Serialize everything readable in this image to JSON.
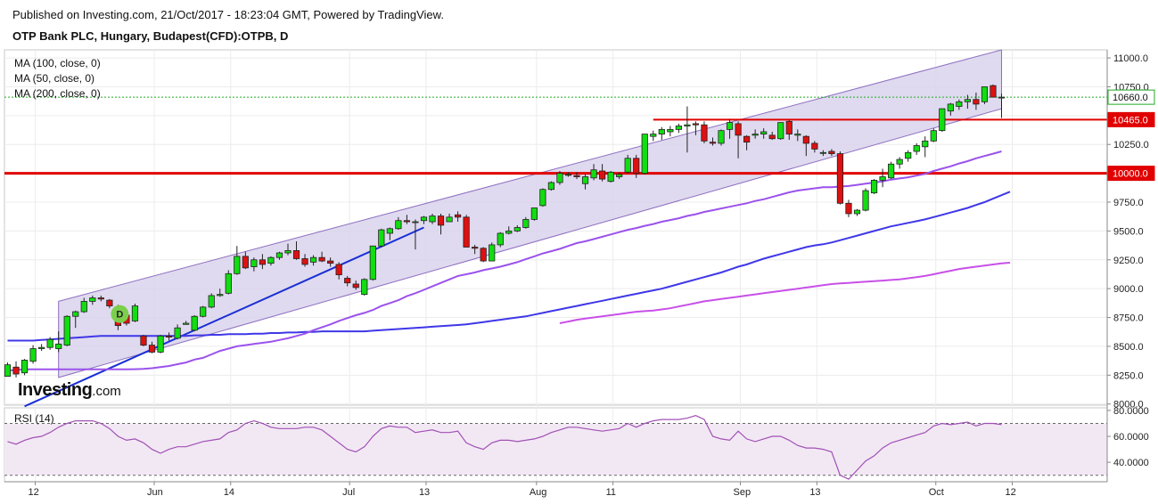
{
  "header": {
    "published": "Published on Investing.com, 21/Oct/2017 - 18:23:04 GMT, Powered by TradingView.",
    "title": "OTP Bank PLC, Hungary, Budapest(CFD):OTPB, D"
  },
  "indicators": {
    "ma100": "MA (100, close, 0)",
    "ma50": "MA (50, close, 0)",
    "ma200": "MA (200, close, 0)",
    "rsi": "RSI (14)"
  },
  "logo": {
    "main": "Investing",
    "suffix": ".com"
  },
  "colors": {
    "up": "#11dd11",
    "down": "#dd1111",
    "channel_fill": "#d9d4ec",
    "channel_stroke": "#8e6fc0",
    "ma100": "#3f37e8",
    "ma50": "#9b52ec",
    "ma200": "#c850e8",
    "trendline": "#1a2fd6",
    "hline": "#e00000",
    "rsi": "#a150b5",
    "rsi_band": "#f2e8f4",
    "badge": "#7ccf4c"
  },
  "chart_data": [
    {
      "type": "candlestick",
      "title": "OTP Bank PLC, Hungary, Budapest(CFD):OTPB, D",
      "ylim": [
        7990,
        11070
      ],
      "yticks": [
        "11000.0",
        "10750.0",
        "10500.0",
        "10250.0",
        "10000.0",
        "9750.0",
        "9500.0",
        "9250.0",
        "9000.0",
        "8750.0",
        "8500.0",
        "8250.0",
        "8000.0"
      ],
      "xticks": [
        "12",
        "Jun",
        "14",
        "Jul",
        "13",
        "Aug",
        "11",
        "Sep",
        "13",
        "Oct",
        "12"
      ],
      "price_labels": [
        {
          "value": 10660,
          "text": "10660.0",
          "style": "last"
        },
        {
          "value": 10465,
          "text": "10465.0",
          "style": "level"
        },
        {
          "value": 10000,
          "text": "10000.0",
          "style": "level"
        }
      ],
      "horizontal_levels": [
        10465,
        10000
      ],
      "last_price": 10660,
      "badge": "D",
      "candles": [
        [
          8240,
          8360,
          8240,
          8340
        ],
        [
          8320,
          8370,
          8230,
          8260
        ],
        [
          8270,
          8390,
          8250,
          8380
        ],
        [
          8370,
          8510,
          8350,
          8480
        ],
        [
          8480,
          8520,
          8460,
          8490
        ],
        [
          8490,
          8580,
          8470,
          8560
        ],
        [
          8480,
          8630,
          8450,
          8520
        ],
        [
          8510,
          8770,
          8500,
          8760
        ],
        [
          8760,
          8810,
          8660,
          8800
        ],
        [
          8800,
          8920,
          8790,
          8890
        ],
        [
          8890,
          8940,
          8860,
          8920
        ],
        [
          8920,
          8940,
          8890,
          8910
        ],
        [
          8900,
          8910,
          8830,
          8850
        ],
        [
          8840,
          8860,
          8640,
          8680
        ],
        [
          8770,
          8780,
          8680,
          8700
        ],
        [
          8720,
          8870,
          8710,
          8850
        ],
        [
          8590,
          8600,
          8500,
          8510
        ],
        [
          8510,
          8540,
          8440,
          8450
        ],
        [
          8450,
          8600,
          8440,
          8590
        ],
        [
          8590,
          8620,
          8550,
          8580
        ],
        [
          8570,
          8690,
          8560,
          8660
        ],
        [
          8690,
          8720,
          8690,
          8700
        ],
        [
          8640,
          8770,
          8630,
          8760
        ],
        [
          8760,
          8850,
          8750,
          8840
        ],
        [
          8840,
          8960,
          8830,
          8940
        ],
        [
          8940,
          9000,
          8930,
          8950
        ],
        [
          8960,
          9160,
          8950,
          9130
        ],
        [
          9130,
          9370,
          9120,
          9280
        ],
        [
          9280,
          9320,
          9170,
          9180
        ],
        [
          9190,
          9270,
          9150,
          9250
        ],
        [
          9250,
          9300,
          9170,
          9210
        ],
        [
          9220,
          9280,
          9200,
          9270
        ],
        [
          9270,
          9320,
          9250,
          9310
        ],
        [
          9310,
          9390,
          9290,
          9330
        ],
        [
          9330,
          9410,
          9250,
          9260
        ],
        [
          9260,
          9300,
          9190,
          9210
        ],
        [
          9230,
          9290,
          9200,
          9270
        ],
        [
          9270,
          9320,
          9230,
          9240
        ],
        [
          9240,
          9270,
          9190,
          9220
        ],
        [
          9210,
          9230,
          9080,
          9120
        ],
        [
          9090,
          9110,
          9020,
          9050
        ],
        [
          9040,
          9070,
          8990,
          9010
        ],
        [
          8950,
          9090,
          8940,
          9080
        ],
        [
          9080,
          9370,
          9070,
          9370
        ],
        [
          9370,
          9520,
          9360,
          9510
        ],
        [
          9480,
          9530,
          9420,
          9520
        ],
        [
          9520,
          9620,
          9510,
          9590
        ],
        [
          9590,
          9640,
          9560,
          9580
        ],
        [
          9580,
          9600,
          9340,
          9580
        ],
        [
          9590,
          9630,
          9560,
          9620
        ],
        [
          9580,
          9650,
          9560,
          9630
        ],
        [
          9630,
          9650,
          9470,
          9550
        ],
        [
          9580,
          9650,
          9580,
          9620
        ],
        [
          9640,
          9670,
          9580,
          9620
        ],
        [
          9620,
          9640,
          9360,
          9360
        ],
        [
          9360,
          9380,
          9300,
          9350
        ],
        [
          9350,
          9360,
          9230,
          9240
        ],
        [
          9240,
          9400,
          9240,
          9380
        ],
        [
          9380,
          9490,
          9360,
          9480
        ],
        [
          9480,
          9540,
          9470,
          9500
        ],
        [
          9500,
          9550,
          9490,
          9530
        ],
        [
          9530,
          9620,
          9520,
          9600
        ],
        [
          9600,
          9700,
          9590,
          9700
        ],
        [
          9720,
          9870,
          9710,
          9860
        ],
        [
          9860,
          9930,
          9850,
          9920
        ],
        [
          9920,
          10020,
          9900,
          10000
        ],
        [
          9990,
          10010,
          9970,
          9990
        ],
        [
          9980,
          10010,
          9950,
          9970
        ],
        [
          9910,
          9990,
          9860,
          9970
        ],
        [
          9960,
          10080,
          9940,
          10030
        ],
        [
          10020,
          10080,
          9930,
          9950
        ],
        [
          9930,
          10020,
          9920,
          10010
        ],
        [
          9970,
          10010,
          9950,
          9990
        ],
        [
          10010,
          10160,
          10000,
          10130
        ],
        [
          10130,
          10160,
          9960,
          10000
        ],
        [
          10000,
          10340,
          9990,
          10340
        ],
        [
          10320,
          10370,
          10280,
          10340
        ],
        [
          10340,
          10400,
          10290,
          10380
        ],
        [
          10360,
          10410,
          10320,
          10380
        ],
        [
          10380,
          10430,
          10350,
          10410
        ],
        [
          10410,
          10580,
          10180,
          10420
        ],
        [
          10430,
          10450,
          10330,
          10420
        ],
        [
          10420,
          10450,
          10260,
          10280
        ],
        [
          10270,
          10310,
          10240,
          10260
        ],
        [
          10260,
          10380,
          10240,
          10370
        ],
        [
          10380,
          10470,
          10300,
          10440
        ],
        [
          10430,
          10450,
          10130,
          10330
        ],
        [
          10320,
          10330,
          10200,
          10270
        ],
        [
          10330,
          10380,
          10300,
          10340
        ],
        [
          10340,
          10390,
          10300,
          10360
        ],
        [
          10330,
          10360,
          10290,
          10300
        ],
        [
          10300,
          10440,
          10290,
          10440
        ],
        [
          10450,
          10460,
          10290,
          10340
        ],
        [
          10330,
          10380,
          10280,
          10340
        ],
        [
          10320,
          10330,
          10150,
          10260
        ],
        [
          10260,
          10280,
          10180,
          10210
        ],
        [
          10180,
          10200,
          10150,
          10180
        ],
        [
          10190,
          10210,
          10150,
          10170
        ],
        [
          10170,
          10190,
          9730,
          9740
        ],
        [
          9740,
          9770,
          9620,
          9650
        ],
        [
          9650,
          9690,
          9630,
          9680
        ],
        [
          9680,
          9870,
          9670,
          9850
        ],
        [
          9830,
          9950,
          9820,
          9940
        ],
        [
          9940,
          10040,
          9880,
          9970
        ],
        [
          9960,
          10100,
          9950,
          10080
        ],
        [
          10080,
          10140,
          10040,
          10120
        ],
        [
          10130,
          10200,
          10100,
          10180
        ],
        [
          10190,
          10260,
          10160,
          10240
        ],
        [
          10230,
          10320,
          10140,
          10280
        ],
        [
          10280,
          10390,
          10270,
          10370
        ],
        [
          10370,
          10560,
          10360,
          10560
        ],
        [
          10540,
          10610,
          10500,
          10600
        ],
        [
          10580,
          10640,
          10550,
          10620
        ],
        [
          10620,
          10680,
          10560,
          10640
        ],
        [
          10640,
          10700,
          10550,
          10600
        ],
        [
          10620,
          10750,
          10600,
          10750
        ],
        [
          10760,
          10770,
          10660,
          10660
        ],
        [
          10660,
          10690,
          10480,
          10660
        ]
      ],
      "ma50": [
        8290,
        8295,
        8300,
        8300,
        8300,
        8300,
        8300,
        8300,
        8300,
        8300,
        8300,
        8300,
        8300,
        8300,
        8300,
        8302,
        8305,
        8310,
        8320,
        8330,
        8345,
        8360,
        8385,
        8400,
        8430,
        8460,
        8480,
        8500,
        8510,
        8520,
        8530,
        8540,
        8555,
        8570,
        8590,
        8610,
        8640,
        8665,
        8690,
        8720,
        8745,
        8770,
        8790,
        8815,
        8850,
        8875,
        8900,
        8935,
        8960,
        8990,
        9020,
        9050,
        9080,
        9110,
        9125,
        9140,
        9160,
        9175,
        9190,
        9210,
        9230,
        9255,
        9280,
        9305,
        9325,
        9345,
        9370,
        9395,
        9410,
        9430,
        9450,
        9470,
        9490,
        9510,
        9525,
        9545,
        9560,
        9580,
        9595,
        9610,
        9630,
        9645,
        9665,
        9680,
        9695,
        9710,
        9725,
        9740,
        9760,
        9775,
        9795,
        9815,
        9835,
        9850,
        9860,
        9870,
        9880,
        9880,
        9885,
        9890,
        9900,
        9910,
        9920,
        9930,
        9945,
        9955,
        9965,
        9980,
        9995,
        10020,
        10040,
        10060,
        10085,
        10105,
        10130,
        10150,
        10170,
        10190
      ],
      "ma100": [
        8550,
        8550,
        8550,
        8550,
        8555,
        8560,
        8565,
        8570,
        8575,
        8580,
        8585,
        8590,
        8590,
        8590,
        8590,
        8590,
        8590,
        8590,
        8590,
        8590,
        8590,
        8590,
        8595,
        8595,
        8600,
        8600,
        8605,
        8605,
        8605,
        8610,
        8610,
        8615,
        8615,
        8620,
        8620,
        8625,
        8625,
        8630,
        8630,
        8630,
        8630,
        8630,
        8630,
        8635,
        8640,
        8645,
        8650,
        8655,
        8660,
        8665,
        8670,
        8675,
        8680,
        8685,
        8690,
        8700,
        8710,
        8720,
        8730,
        8740,
        8750,
        8760,
        8775,
        8790,
        8805,
        8820,
        8835,
        8850,
        8865,
        8880,
        8895,
        8910,
        8925,
        8940,
        8955,
        8970,
        8985,
        9000,
        9020,
        9040,
        9060,
        9080,
        9100,
        9120,
        9140,
        9165,
        9190,
        9210,
        9235,
        9260,
        9280,
        9300,
        9320,
        9340,
        9360,
        9375,
        9385,
        9400,
        9420,
        9440,
        9460,
        9480,
        9500,
        9520,
        9540,
        9555,
        9570,
        9585,
        9600,
        9620,
        9640,
        9660,
        9680,
        9700,
        9725,
        9750,
        9780,
        9810,
        9840
      ],
      "ma200": [
        null,
        null,
        null,
        null,
        null,
        null,
        null,
        null,
        null,
        null,
        null,
        null,
        null,
        null,
        null,
        null,
        null,
        null,
        null,
        null,
        null,
        null,
        null,
        null,
        null,
        null,
        null,
        null,
        null,
        null,
        null,
        null,
        null,
        null,
        null,
        null,
        null,
        null,
        null,
        null,
        null,
        null,
        null,
        null,
        null,
        null,
        null,
        null,
        null,
        null,
        null,
        null,
        null,
        null,
        null,
        null,
        null,
        null,
        null,
        null,
        null,
        null,
        null,
        null,
        null,
        8700,
        8715,
        8730,
        8740,
        8750,
        8760,
        8770,
        8780,
        8790,
        8800,
        8805,
        8810,
        8820,
        8830,
        8845,
        8860,
        8875,
        8890,
        8900,
        8910,
        8920,
        8930,
        8940,
        8950,
        8960,
        8970,
        8980,
        8990,
        9000,
        9010,
        9020,
        9030,
        9040,
        9045,
        9050,
        9055,
        9060,
        9065,
        9070,
        9075,
        9080,
        9090,
        9100,
        9110,
        9125,
        9140,
        9155,
        9170,
        9180,
        9190,
        9200,
        9210,
        9220,
        9225
      ],
      "channel": {
        "start": {
          "i": 6,
          "upper": 8890,
          "lower": 8230
        },
        "end": {
          "i": 117,
          "upper": 11070,
          "lower": 10560
        }
      },
      "trendline": {
        "from": {
          "i": 2,
          "v": 7980
        },
        "to": {
          "i": 49,
          "v": 9530
        }
      }
    },
    {
      "type": "line",
      "title": "RSI (14)",
      "ylim": [
        25,
        82
      ],
      "yticks": [
        "80.0000",
        "60.0000",
        "40.0000"
      ],
      "band": [
        30,
        70
      ],
      "values": [
        56,
        54,
        57,
        59,
        60,
        63,
        67,
        70,
        72,
        72,
        72,
        70,
        66,
        60,
        57,
        58,
        55,
        50,
        47,
        50,
        52,
        52,
        54,
        56,
        57,
        58,
        63,
        65,
        70,
        72,
        70,
        67,
        66,
        66,
        66,
        67,
        67,
        65,
        60,
        55,
        50,
        48,
        52,
        60,
        66,
        68,
        67,
        67,
        63,
        64,
        65,
        63,
        63,
        64,
        55,
        52,
        50,
        55,
        57,
        57,
        56,
        57,
        58,
        60,
        63,
        65,
        67,
        67,
        66,
        65,
        64,
        65,
        66,
        70,
        67,
        70,
        72,
        73,
        73,
        73,
        74,
        76,
        73,
        60,
        58,
        57,
        64,
        58,
        56,
        58,
        60,
        60,
        57,
        53,
        51,
        51,
        50,
        48,
        30,
        27,
        34,
        41,
        45,
        51,
        55,
        57,
        59,
        61,
        63,
        68,
        70,
        69,
        70,
        71,
        68,
        70,
        70,
        69
      ]
    }
  ]
}
